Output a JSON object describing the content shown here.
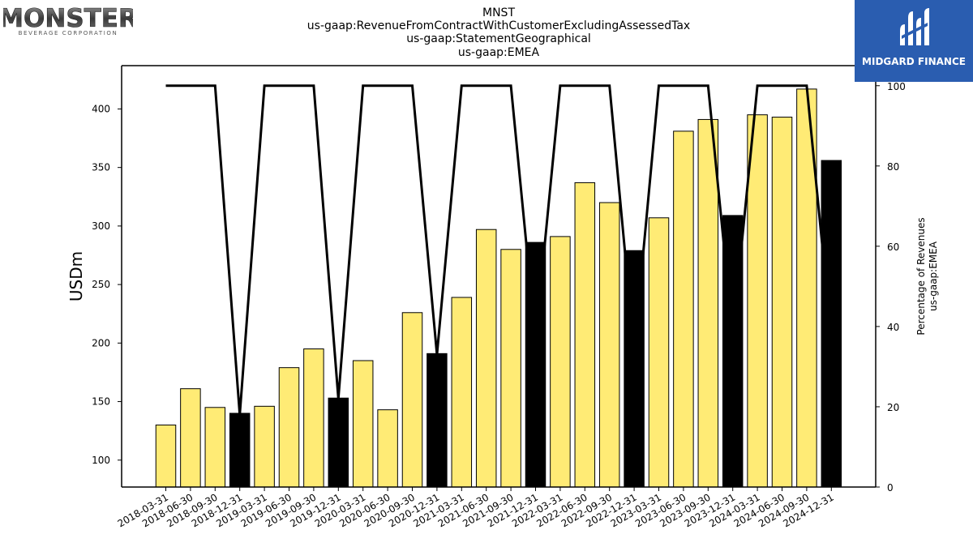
{
  "header": {
    "title_lines": [
      "MNST",
      "us-gaap:RevenueFromContractWithCustomerExcludingAssessedTax",
      "us-gaap:StatementGeographical",
      "us-gaap:EMEA"
    ]
  },
  "logos": {
    "left_word": "MONSTER",
    "left_sub": "BEVERAGE CORPORATION",
    "right_name": "MIDGARD FINANCE"
  },
  "colors": {
    "bar_default": "#ffeb75",
    "bar_highlight": "#000000",
    "line": "#000000",
    "brand_blue": "#2a5db0"
  },
  "chart_data": {
    "type": "bar",
    "categories": [
      "2018-03-31",
      "2018-06-30",
      "2018-09-30",
      "2018-12-31",
      "2019-03-31",
      "2019-06-30",
      "2019-09-30",
      "2019-12-31",
      "2020-03-31",
      "2020-06-30",
      "2020-09-30",
      "2020-12-31",
      "2021-03-31",
      "2021-06-30",
      "2021-09-30",
      "2021-12-31",
      "2022-03-31",
      "2022-06-30",
      "2022-09-30",
      "2022-12-31",
      "2023-03-31",
      "2023-06-30",
      "2023-09-30",
      "2023-12-31",
      "2024-03-31",
      "2024-06-30",
      "2024-09-30",
      "2024-12-31"
    ],
    "values": [
      130,
      161,
      145,
      140,
      146,
      179,
      195,
      153,
      185,
      143,
      226,
      191,
      239,
      297,
      280,
      286,
      291,
      337,
      320,
      279,
      307,
      381,
      391,
      309,
      395,
      393,
      417,
      356
    ],
    "highlight": [
      false,
      false,
      false,
      true,
      false,
      false,
      false,
      true,
      false,
      false,
      false,
      true,
      false,
      false,
      false,
      true,
      false,
      false,
      false,
      true,
      false,
      false,
      false,
      true,
      false,
      false,
      false,
      true
    ],
    "line_values": [
      100,
      100,
      100,
      18,
      100,
      100,
      100,
      22,
      100,
      100,
      100,
      33,
      100,
      100,
      100,
      37,
      100,
      100,
      100,
      34,
      100,
      100,
      100,
      38,
      100,
      100,
      100,
      37
    ],
    "ylabel": "USDm",
    "ylim": [
      77,
      437
    ],
    "yticks": [
      100,
      150,
      200,
      250,
      300,
      350,
      400
    ],
    "y2label_lines": [
      "Percentage of Revenues",
      "us-gaap:EMEA"
    ],
    "y2lim": [
      0,
      105
    ],
    "y2ticks": [
      0,
      20,
      40,
      60,
      80,
      100
    ],
    "grid": false
  }
}
